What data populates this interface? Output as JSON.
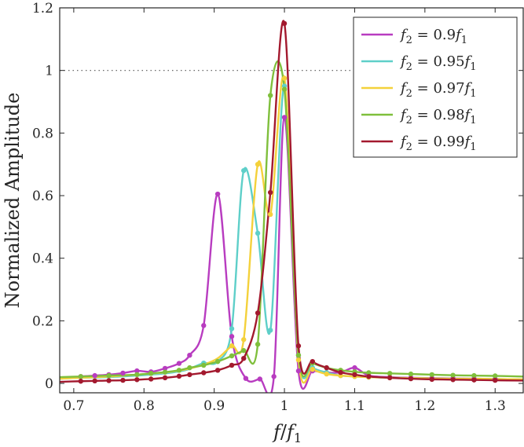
{
  "chart_data": {
    "type": "line",
    "xlabel": "f / f1",
    "ylabel": "Normalized Amplitude",
    "xlim": [
      0.68,
      1.34
    ],
    "ylim": [
      -0.03,
      1.2
    ],
    "xticks": [
      "0.7",
      "0.8",
      "0.9",
      "1",
      "1.1",
      "1.2",
      "1.3"
    ],
    "yticks": [
      "0",
      "0.2",
      "0.4",
      "0.6",
      "0.8",
      "1",
      "1.2"
    ],
    "grid": false,
    "legend_position": "top-right",
    "reference_line": {
      "y": 1.0,
      "style": "dotted",
      "x_range": [
        0.68,
        1.12
      ]
    },
    "series": [
      {
        "name": "f2 = 0.9f1",
        "label_parts": [
          "f",
          "2",
          " = 0.9",
          "f",
          "1"
        ],
        "color": "#b83cc0",
        "points": [
          [
            0.68,
            0.015
          ],
          [
            0.71,
            0.022
          ],
          [
            0.73,
            0.025
          ],
          [
            0.75,
            0.028
          ],
          [
            0.77,
            0.033
          ],
          [
            0.79,
            0.04
          ],
          [
            0.81,
            0.037
          ],
          [
            0.83,
            0.048
          ],
          [
            0.85,
            0.064
          ],
          [
            0.865,
            0.09
          ],
          [
            0.885,
            0.185
          ],
          [
            0.905,
            0.605
          ],
          [
            0.925,
            0.15
          ],
          [
            0.945,
            0.016
          ],
          [
            0.965,
            0.014
          ],
          [
            0.985,
            0.022
          ],
          [
            1.0,
            0.85
          ],
          [
            1.02,
            0.04
          ],
          [
            1.04,
            0.04
          ],
          [
            1.06,
            0.035
          ],
          [
            1.08,
            0.035
          ],
          [
            1.1,
            0.05
          ],
          [
            1.12,
            0.025
          ],
          [
            1.15,
            0.02
          ],
          [
            1.18,
            0.018
          ],
          [
            1.21,
            0.017
          ],
          [
            1.24,
            0.016
          ],
          [
            1.27,
            0.015
          ],
          [
            1.3,
            0.014
          ],
          [
            1.34,
            0.013
          ]
        ],
        "markers": [
          [
            0.71,
            0.022
          ],
          [
            0.73,
            0.025
          ],
          [
            0.75,
            0.028
          ],
          [
            0.77,
            0.033
          ],
          [
            0.79,
            0.04
          ],
          [
            0.81,
            0.037
          ],
          [
            0.83,
            0.048
          ],
          [
            0.85,
            0.064
          ],
          [
            0.865,
            0.09
          ],
          [
            0.885,
            0.185
          ],
          [
            0.905,
            0.605
          ],
          [
            0.925,
            0.15
          ],
          [
            0.945,
            0.016
          ],
          [
            0.965,
            0.014
          ],
          [
            0.985,
            0.022
          ],
          [
            1.0,
            0.85
          ],
          [
            1.02,
            0.04
          ],
          [
            1.04,
            0.04
          ],
          [
            1.06,
            0.035
          ],
          [
            1.08,
            0.035
          ],
          [
            1.1,
            0.05
          ],
          [
            1.12,
            0.025
          ],
          [
            1.15,
            0.02
          ],
          [
            1.18,
            0.018
          ],
          [
            1.21,
            0.017
          ],
          [
            1.24,
            0.016
          ],
          [
            1.27,
            0.015
          ],
          [
            1.3,
            0.014
          ]
        ]
      },
      {
        "name": "f2 = 0.95f1",
        "label_parts": [
          "f",
          "2",
          " = 0.95",
          "f",
          "1"
        ],
        "color": "#5ecfc9",
        "points": [
          [
            0.68,
            0.015
          ],
          [
            0.71,
            0.018
          ],
          [
            0.75,
            0.02
          ],
          [
            0.79,
            0.025
          ],
          [
            0.83,
            0.032
          ],
          [
            0.86,
            0.043
          ],
          [
            0.885,
            0.065
          ],
          [
            0.905,
            0.07
          ],
          [
            0.925,
            0.175
          ],
          [
            0.942,
            0.68
          ],
          [
            0.962,
            0.48
          ],
          [
            0.98,
            0.17
          ],
          [
            1.0,
            0.95
          ],
          [
            1.02,
            0.09
          ],
          [
            1.04,
            0.05
          ],
          [
            1.06,
            0.035
          ],
          [
            1.08,
            0.025
          ],
          [
            1.1,
            0.022
          ],
          [
            1.12,
            0.02
          ],
          [
            1.15,
            0.018
          ],
          [
            1.18,
            0.017
          ],
          [
            1.21,
            0.016
          ],
          [
            1.24,
            0.015
          ],
          [
            1.27,
            0.015
          ],
          [
            1.3,
            0.014
          ],
          [
            1.34,
            0.013
          ]
        ],
        "markers": [
          [
            0.885,
            0.065
          ],
          [
            0.905,
            0.07
          ],
          [
            0.925,
            0.175
          ],
          [
            0.942,
            0.68
          ],
          [
            0.962,
            0.48
          ],
          [
            0.98,
            0.17
          ],
          [
            1.0,
            0.95
          ],
          [
            1.02,
            0.09
          ],
          [
            1.04,
            0.05
          ],
          [
            1.06,
            0.035
          ],
          [
            1.08,
            0.025
          ],
          [
            1.1,
            0.022
          ],
          [
            1.12,
            0.02
          ]
        ]
      },
      {
        "name": "f2 = 0.97f1",
        "label_parts": [
          "f",
          "2",
          " = 0.97",
          "f",
          "1"
        ],
        "color": "#f4d13b",
        "points": [
          [
            0.68,
            0.015
          ],
          [
            0.71,
            0.018
          ],
          [
            0.75,
            0.022
          ],
          [
            0.79,
            0.028
          ],
          [
            0.83,
            0.035
          ],
          [
            0.86,
            0.045
          ],
          [
            0.885,
            0.06
          ],
          [
            0.905,
            0.08
          ],
          [
            0.925,
            0.12
          ],
          [
            0.942,
            0.14
          ],
          [
            0.962,
            0.7
          ],
          [
            0.98,
            0.54
          ],
          [
            1.0,
            0.975
          ],
          [
            1.02,
            0.075
          ],
          [
            1.04,
            0.045
          ],
          [
            1.06,
            0.03
          ],
          [
            1.08,
            0.025
          ],
          [
            1.1,
            0.022
          ],
          [
            1.12,
            0.02
          ],
          [
            1.15,
            0.018
          ],
          [
            1.18,
            0.017
          ],
          [
            1.21,
            0.016
          ],
          [
            1.24,
            0.015
          ],
          [
            1.27,
            0.015
          ],
          [
            1.3,
            0.014
          ],
          [
            1.34,
            0.013
          ]
        ],
        "markers": [
          [
            0.925,
            0.12
          ],
          [
            0.942,
            0.14
          ],
          [
            0.962,
            0.7
          ],
          [
            0.98,
            0.54
          ],
          [
            1.0,
            0.975
          ],
          [
            1.02,
            0.075
          ],
          [
            1.04,
            0.045
          ],
          [
            1.06,
            0.03
          ],
          [
            1.08,
            0.025
          ],
          [
            1.1,
            0.022
          ],
          [
            1.12,
            0.02
          ],
          [
            1.15,
            0.018
          ]
        ]
      },
      {
        "name": "f2 = 0.98f1",
        "label_parts": [
          "f",
          "2",
          " = 0.98",
          "f",
          "1"
        ],
        "color": "#7fbf3c",
        "points": [
          [
            0.68,
            0.02
          ],
          [
            0.71,
            0.022
          ],
          [
            0.75,
            0.025
          ],
          [
            0.79,
            0.028
          ],
          [
            0.81,
            0.032
          ],
          [
            0.83,
            0.036
          ],
          [
            0.85,
            0.042
          ],
          [
            0.865,
            0.05
          ],
          [
            0.885,
            0.058
          ],
          [
            0.905,
            0.07
          ],
          [
            0.925,
            0.088
          ],
          [
            0.942,
            0.105
          ],
          [
            0.962,
            0.125
          ],
          [
            0.98,
            0.92
          ],
          [
            1.0,
            0.94
          ],
          [
            1.02,
            0.09
          ],
          [
            1.04,
            0.065
          ],
          [
            1.06,
            0.05
          ],
          [
            1.08,
            0.042
          ],
          [
            1.1,
            0.037
          ],
          [
            1.12,
            0.034
          ],
          [
            1.15,
            0.032
          ],
          [
            1.18,
            0.03
          ],
          [
            1.21,
            0.028
          ],
          [
            1.24,
            0.026
          ],
          [
            1.27,
            0.025
          ],
          [
            1.3,
            0.024
          ],
          [
            1.34,
            0.022
          ]
        ],
        "markers": [
          [
            0.71,
            0.022
          ],
          [
            0.75,
            0.025
          ],
          [
            0.79,
            0.028
          ],
          [
            0.81,
            0.032
          ],
          [
            0.83,
            0.036
          ],
          [
            0.85,
            0.042
          ],
          [
            0.865,
            0.05
          ],
          [
            0.885,
            0.058
          ],
          [
            0.905,
            0.07
          ],
          [
            0.925,
            0.088
          ],
          [
            0.942,
            0.105
          ],
          [
            0.962,
            0.125
          ],
          [
            0.98,
            0.92
          ],
          [
            1.0,
            0.94
          ],
          [
            1.02,
            0.09
          ],
          [
            1.04,
            0.065
          ],
          [
            1.06,
            0.05
          ],
          [
            1.08,
            0.042
          ],
          [
            1.1,
            0.037
          ],
          [
            1.12,
            0.034
          ],
          [
            1.15,
            0.032
          ],
          [
            1.18,
            0.03
          ],
          [
            1.21,
            0.028
          ],
          [
            1.24,
            0.026
          ],
          [
            1.27,
            0.025
          ],
          [
            1.3,
            0.024
          ]
        ]
      },
      {
        "name": "f2 = 0.99f1",
        "label_parts": [
          "f",
          "2",
          " = 0.99",
          "f",
          "1"
        ],
        "color": "#a3192e",
        "points": [
          [
            0.68,
            0.005
          ],
          [
            0.71,
            0.007
          ],
          [
            0.73,
            0.008
          ],
          [
            0.75,
            0.009
          ],
          [
            0.77,
            0.01
          ],
          [
            0.79,
            0.012
          ],
          [
            0.81,
            0.014
          ],
          [
            0.83,
            0.018
          ],
          [
            0.85,
            0.023
          ],
          [
            0.865,
            0.028
          ],
          [
            0.885,
            0.034
          ],
          [
            0.905,
            0.042
          ],
          [
            0.925,
            0.058
          ],
          [
            0.942,
            0.08
          ],
          [
            0.962,
            0.225
          ],
          [
            0.98,
            0.61
          ],
          [
            1.0,
            1.15
          ],
          [
            1.02,
            0.12
          ],
          [
            1.04,
            0.07
          ],
          [
            1.06,
            0.05
          ],
          [
            1.08,
            0.035
          ],
          [
            1.1,
            0.028
          ],
          [
            1.12,
            0.022
          ],
          [
            1.15,
            0.018
          ],
          [
            1.18,
            0.015
          ],
          [
            1.21,
            0.013
          ],
          [
            1.24,
            0.012
          ],
          [
            1.27,
            0.011
          ],
          [
            1.3,
            0.01
          ],
          [
            1.34,
            0.009
          ]
        ],
        "markers": [
          [
            0.71,
            0.007
          ],
          [
            0.73,
            0.008
          ],
          [
            0.75,
            0.009
          ],
          [
            0.77,
            0.01
          ],
          [
            0.79,
            0.012
          ],
          [
            0.81,
            0.014
          ],
          [
            0.83,
            0.018
          ],
          [
            0.85,
            0.023
          ],
          [
            0.865,
            0.028
          ],
          [
            0.885,
            0.034
          ],
          [
            0.905,
            0.042
          ],
          [
            0.925,
            0.058
          ],
          [
            0.942,
            0.08
          ],
          [
            0.962,
            0.225
          ],
          [
            0.98,
            0.61
          ],
          [
            1.0,
            1.15
          ],
          [
            1.02,
            0.12
          ],
          [
            1.04,
            0.07
          ],
          [
            1.06,
            0.05
          ],
          [
            1.08,
            0.035
          ],
          [
            1.1,
            0.028
          ],
          [
            1.12,
            0.022
          ],
          [
            1.15,
            0.018
          ],
          [
            1.18,
            0.015
          ],
          [
            1.21,
            0.013
          ],
          [
            1.24,
            0.012
          ],
          [
            1.27,
            0.011
          ],
          [
            1.3,
            0.01
          ]
        ]
      }
    ]
  }
}
